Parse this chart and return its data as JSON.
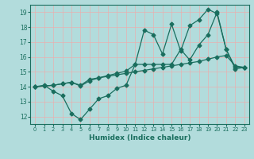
{
  "xlabel": "Humidex (Indice chaleur)",
  "bg_color": "#b2dcdc",
  "grid_color": "#e8b0b0",
  "line_color": "#1a6e5e",
  "xlim": [
    -0.5,
    23.5
  ],
  "ylim": [
    11.5,
    19.5
  ],
  "xticks": [
    0,
    1,
    2,
    3,
    4,
    5,
    6,
    7,
    8,
    9,
    10,
    11,
    12,
    13,
    14,
    15,
    16,
    17,
    18,
    19,
    20,
    21,
    22,
    23
  ],
  "yticks": [
    12,
    13,
    14,
    15,
    16,
    17,
    18,
    19
  ],
  "line1_x": [
    0,
    1,
    2,
    3,
    4,
    5,
    6,
    7,
    8,
    9,
    10,
    11,
    12,
    13,
    14,
    15,
    16,
    17,
    18,
    19,
    20,
    21,
    22,
    23
  ],
  "line1_y": [
    14.0,
    14.1,
    13.7,
    13.4,
    12.2,
    11.8,
    12.5,
    13.2,
    13.4,
    13.9,
    14.1,
    15.5,
    17.8,
    17.5,
    16.2,
    18.2,
    16.4,
    18.1,
    18.5,
    19.2,
    18.9,
    16.5,
    15.2,
    15.3
  ],
  "line2_x": [
    0,
    1,
    2,
    3,
    4,
    5,
    6,
    7,
    8,
    9,
    10,
    11,
    12,
    13,
    14,
    15,
    16,
    17,
    18,
    19,
    20,
    21,
    22,
    23
  ],
  "line2_y": [
    14.0,
    14.05,
    14.1,
    14.2,
    14.3,
    14.1,
    14.5,
    14.6,
    14.7,
    14.8,
    14.9,
    15.0,
    15.1,
    15.2,
    15.3,
    15.4,
    15.5,
    15.6,
    15.7,
    15.85,
    16.0,
    16.1,
    15.4,
    15.3
  ],
  "line3_x": [
    0,
    2,
    3,
    4,
    5,
    6,
    7,
    8,
    9,
    10,
    11,
    12,
    13,
    14,
    15,
    16,
    17,
    18,
    19,
    20,
    21,
    22,
    23
  ],
  "line3_y": [
    14.0,
    14.1,
    14.2,
    14.3,
    14.05,
    14.4,
    14.6,
    14.75,
    14.9,
    15.05,
    15.5,
    15.5,
    15.5,
    15.5,
    15.5,
    16.5,
    15.8,
    16.8,
    17.5,
    19.0,
    16.5,
    15.3,
    15.3
  ]
}
